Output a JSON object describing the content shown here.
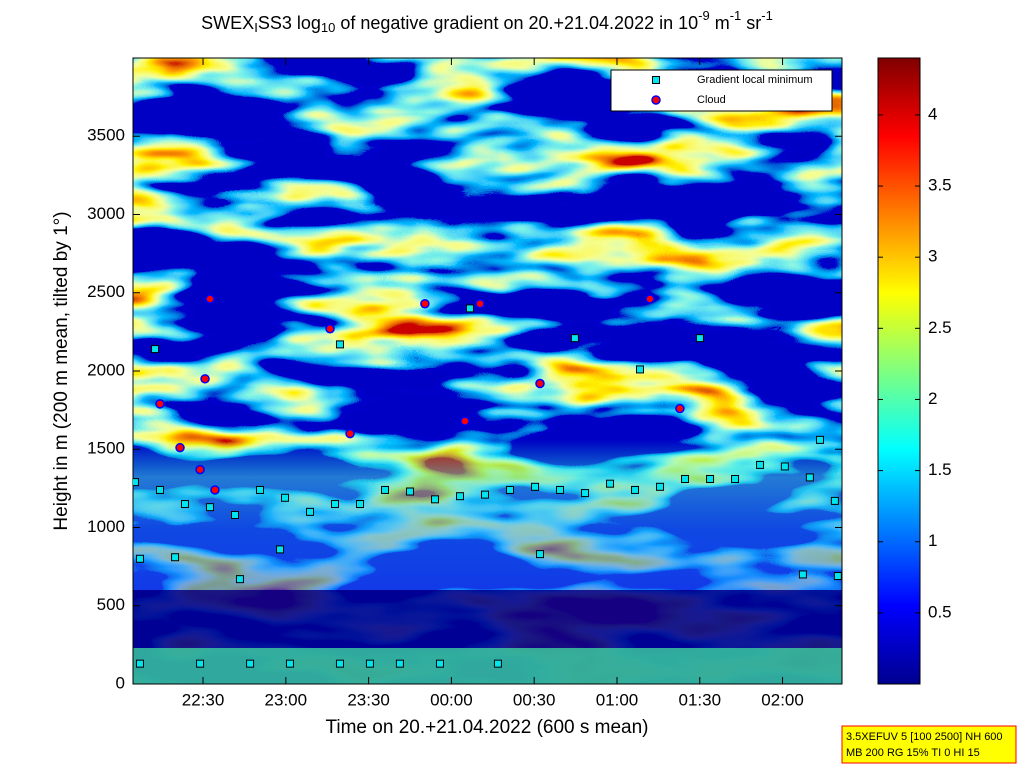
{
  "chart_data": {
    "type": "heatmap-scatter",
    "title_parts": [
      {
        "text": "SWEX",
        "shift": "none"
      },
      {
        "text": "I",
        "shift": "sub"
      },
      {
        "text": "SS3 log",
        "shift": "none"
      },
      {
        "text": "10",
        "shift": "sub"
      },
      {
        "text": " of negative gradient on 20.+21.04.2022 in 10",
        "shift": "none"
      },
      {
        "text": "-9",
        "shift": "super"
      },
      {
        "text": " m",
        "shift": "none"
      },
      {
        "text": "-1",
        "shift": "super"
      },
      {
        "text": " sr",
        "shift": "none"
      },
      {
        "text": "-1",
        "shift": "super"
      }
    ],
    "x_label": "Time on 20.+21.04.2022 (600 s mean)",
    "y_label": "Height in m (200 m mean, tilted by 1°)",
    "xlim": [
      22.077,
      26.359
    ],
    "xticks": [
      {
        "value": 22.5,
        "label": "22:30"
      },
      {
        "value": 23,
        "label": "23:00"
      },
      {
        "value": 23.5,
        "label": "23:30"
      },
      {
        "value": 24,
        "label": "00:00"
      },
      {
        "value": 24.5,
        "label": "00:30"
      },
      {
        "value": 25,
        "label": "01:00"
      },
      {
        "value": 25.5,
        "label": "01:30"
      },
      {
        "value": 26,
        "label": "02:00"
      }
    ],
    "ylim": [
      0,
      4000
    ],
    "yticks": [
      0,
      500,
      1000,
      1500,
      2000,
      2500,
      3000,
      3500
    ],
    "clim": [
      0,
      4.4
    ],
    "cticks": [
      0.5,
      1,
      1.5,
      2,
      2.5,
      3,
      3.5,
      4
    ],
    "colormap": "jet",
    "legend_position": "top-right",
    "series": [
      {
        "name": "Gradient local minimum",
        "marker": "square",
        "color": "#00e5ee",
        "x": [
          22.089,
          22.24,
          22.391,
          22.542,
          22.693,
          22.844,
          22.995,
          23.146,
          23.297,
          23.448,
          23.599,
          23.75,
          23.901,
          24.052,
          24.203,
          24.354,
          24.505,
          24.656,
          24.807,
          24.958,
          25.109,
          25.26,
          25.411,
          25.562,
          25.713,
          25.864,
          26.014,
          26.165,
          26.316,
          22.119,
          22.331,
          22.723,
          22.965,
          24.535,
          26.123,
          26.334,
          22.21,
          23.327,
          24.112,
          24.746,
          25.139,
          25.501,
          26.226,
          22.119,
          22.482,
          22.784,
          23.025,
          23.327,
          23.508,
          23.689,
          23.931,
          24.281
        ],
        "y": [
          1290,
          1240,
          1150,
          1130,
          1080,
          1240,
          1190,
          1100,
          1150,
          1150,
          1240,
          1230,
          1180,
          1200,
          1210,
          1240,
          1260,
          1240,
          1220,
          1280,
          1240,
          1260,
          1310,
          1310,
          1310,
          1400,
          1390,
          1320,
          1170,
          800,
          810,
          670,
          860,
          830,
          700,
          690,
          2140,
          2170,
          2400,
          2210,
          2010,
          2210,
          1560,
          130,
          130,
          130,
          130,
          130,
          130,
          130,
          130,
          130
        ]
      },
      {
        "name": "Cloud",
        "marker": "circle",
        "color": "#ff0000",
        "edge": "#0000ff",
        "x": [
          22.24,
          22.361,
          22.512,
          22.572,
          23.267,
          23.388,
          23.84,
          24.082,
          24.173,
          24.535,
          25.199,
          25.38,
          22.542,
          22.482
        ],
        "y": [
          1790,
          1510,
          1950,
          1240,
          2270,
          1600,
          2430,
          1680,
          2430,
          1920,
          2460,
          1760,
          2460,
          1370
        ]
      }
    ],
    "info_box": [
      "3.5XEFUV 5 [100 2500] NH 600",
      "MB 200 RG 15% TI 0 HI 15"
    ]
  }
}
